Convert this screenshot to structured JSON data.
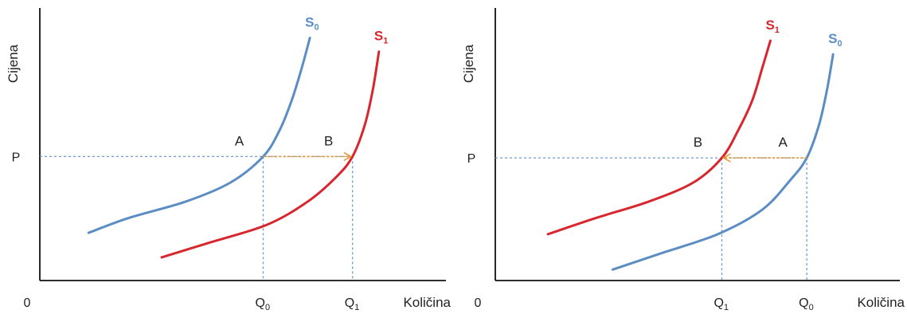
{
  "colors": {
    "s0": "#5b8dc4",
    "s1": "#d8262e",
    "axis": "#111111",
    "guide": "#6f9cd0",
    "arrow": "#e59a3c"
  },
  "chart_data": [
    {
      "type": "line",
      "panel": "left",
      "ylabel": "Cijena",
      "xlabel": "Količina",
      "origin_label": "0",
      "price_label": "P",
      "xlim": [
        0,
        100
      ],
      "ylim": [
        0,
        100
      ],
      "price_value": 45.5,
      "series": [
        {
          "name": "S₀",
          "label_base": "S",
          "label_sub": "0",
          "color": "#5b8dc4",
          "x": [
            12,
            22,
            36,
            47,
            55,
            59,
            62,
            64.5,
            66.5
          ],
          "y": [
            17.5,
            23,
            29,
            36,
            45.5,
            55,
            66,
            78,
            89
          ]
        },
        {
          "name": "S₁",
          "label_base": "S",
          "label_sub": "1",
          "color": "#d8262e",
          "x": [
            30,
            42,
            56,
            66,
            73,
            77,
            80,
            82,
            83.5
          ],
          "y": [
            8.5,
            14,
            20.5,
            29,
            38,
            45.5,
            57,
            70,
            84
          ]
        }
      ],
      "points": [
        {
          "label": "A",
          "x": 55,
          "y": 45.5
        },
        {
          "label": "B",
          "x": 77,
          "y": 45.5
        }
      ],
      "x_ticks": [
        {
          "base": "Q",
          "sub": "0",
          "x": 55
        },
        {
          "base": "Q",
          "sub": "1",
          "x": 77
        }
      ],
      "arrow": {
        "from_x": 55,
        "to_x": 77,
        "y": 45.5
      }
    },
    {
      "type": "line",
      "panel": "right",
      "ylabel": "Cijena",
      "xlabel": "Količina",
      "origin_label": "0",
      "price_label": "P",
      "xlim": [
        0,
        100
      ],
      "ylim": [
        0,
        100
      ],
      "price_value": 45,
      "series": [
        {
          "name": "S₁",
          "label_base": "S",
          "label_sub": "1",
          "color": "#d8262e",
          "x": [
            13,
            25,
            38,
            49,
            56,
            60,
            63.5,
            66,
            68
          ],
          "y": [
            17,
            23,
            29,
            36,
            45,
            55,
            66,
            78,
            88
          ]
        },
        {
          "name": "S₀",
          "label_base": "S",
          "label_sub": "0",
          "color": "#5b8dc4",
          "x": [
            29,
            41,
            55,
            66,
            73,
            77,
            80,
            82,
            83.5
          ],
          "y": [
            4,
            10,
            17,
            26,
            37,
            45,
            57,
            70,
            83
          ]
        }
      ],
      "points": [
        {
          "label": "B",
          "x": 56,
          "y": 45
        },
        {
          "label": "A",
          "x": 77,
          "y": 45
        }
      ],
      "x_ticks": [
        {
          "base": "Q",
          "sub": "1",
          "x": 56
        },
        {
          "base": "Q",
          "sub": "0",
          "x": 77
        }
      ],
      "arrow": {
        "from_x": 77,
        "to_x": 56,
        "y": 45
      }
    }
  ]
}
